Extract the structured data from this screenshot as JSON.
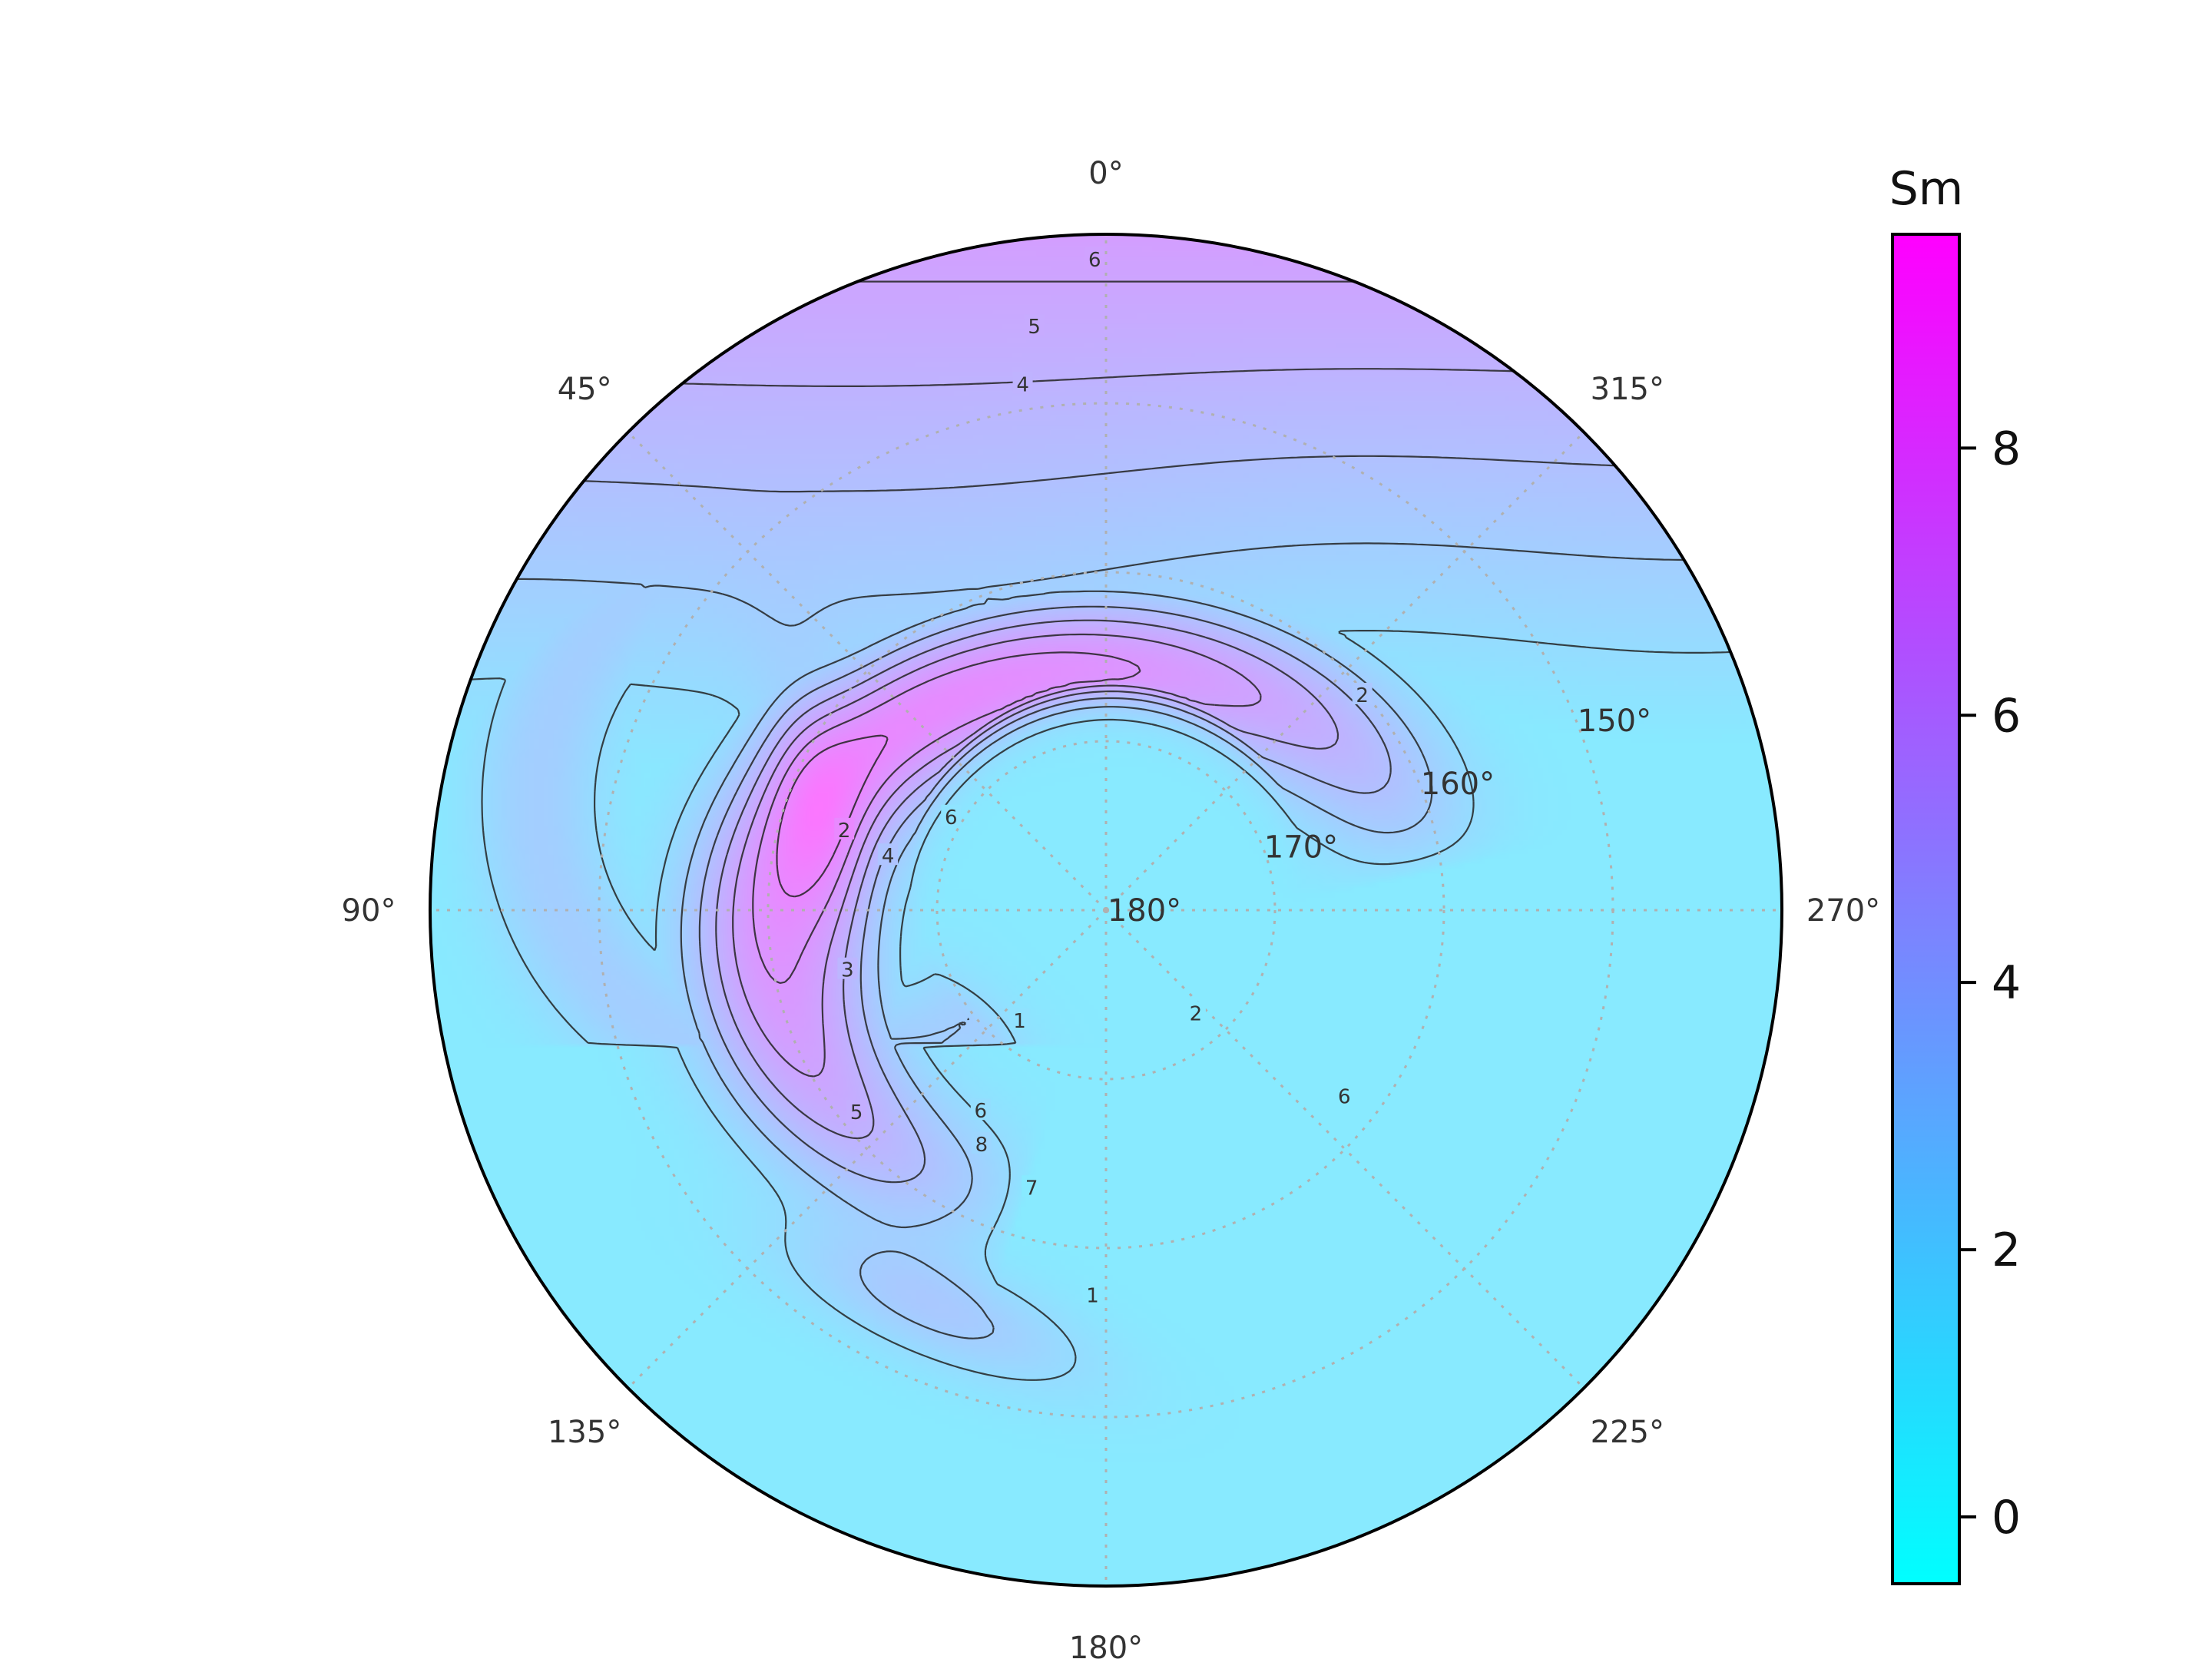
{
  "chart_data": {
    "type": "polar contour",
    "projection": "polar stereographic (south pole centred)",
    "quantity": "Sm",
    "colormap": "cool",
    "colormap_colors": [
      "#00ffff",
      "#ff00ff"
    ],
    "background_fill_value": 1.0,
    "azimuth_ticks": [
      {
        "angle": 0,
        "label": "0°"
      },
      {
        "angle": 45,
        "label": "45°"
      },
      {
        "angle": 90,
        "label": "90°"
      },
      {
        "angle": 135,
        "label": "135°"
      },
      {
        "angle": 180,
        "label": "180°"
      },
      {
        "angle": 225,
        "label": "225°"
      },
      {
        "angle": 270,
        "label": "270°"
      },
      {
        "angle": 315,
        "label": "315°"
      }
    ],
    "colatitude_rings": [
      {
        "value": 150,
        "label": "150°"
      },
      {
        "value": 160,
        "label": "160°"
      },
      {
        "value": 170,
        "label": "170°"
      },
      {
        "value": 180,
        "label": "180°"
      }
    ],
    "contour_levels": [
      1,
      2,
      3,
      4,
      5,
      6,
      7,
      8
    ],
    "contour_labels": [
      {
        "value": 6,
        "text": "6",
        "az": 1,
        "colat": 141.5
      },
      {
        "value": 5,
        "text": "5",
        "az": 7,
        "colat": 145.2
      },
      {
        "value": 4,
        "text": "4",
        "az": 9,
        "colat": 148.5
      },
      {
        "value": 2,
        "text": "2",
        "az": 73,
        "colat": 163.8
      },
      {
        "value": 4,
        "text": "4",
        "az": 76,
        "colat": 166.7
      },
      {
        "value": 3,
        "text": "3",
        "az": 103,
        "colat": 164.3
      },
      {
        "value": 6,
        "text": "6",
        "az": 59,
        "colat": 169.3
      },
      {
        "value": 6,
        "text": "6",
        "az": 148,
        "colat": 166.0
      },
      {
        "value": 8,
        "text": "8",
        "az": 152,
        "colat": 164.3
      },
      {
        "value": 5,
        "text": "5",
        "az": 129,
        "colat": 161.0
      },
      {
        "value": 7,
        "text": "7",
        "az": 165,
        "colat": 163.0
      },
      {
        "value": 1,
        "text": "1",
        "az": 142,
        "colat": 171.7
      },
      {
        "value": 2,
        "text": "2",
        "az": 221,
        "colat": 171.9
      },
      {
        "value": 6,
        "text": "6",
        "az": 232,
        "colat": 162.1
      },
      {
        "value": 1,
        "text": "1",
        "az": 178,
        "colat": 157.2
      },
      {
        "value": 2,
        "text": "2",
        "az": 310,
        "colat": 160.2
      }
    ],
    "field_model": {
      "background": {
        "base": 1.0,
        "top_value": 6.0,
        "top_y": 0.93,
        "front_y": 0.22,
        "front_tilt": 0.07,
        "front_wave_amp": 0.04
      },
      "ring": {
        "center_x": 0.0,
        "center_y": -0.05,
        "radius": 0.49,
        "ellipse_y": 0.83,
        "width": 0.26,
        "peak": 7.3,
        "start_angle_deg": 105,
        "end_angle_deg": 345
      },
      "bands": [
        {
          "dx": -0.44,
          "dy": 0.16,
          "radius": 0.4,
          "width": 0.1,
          "peak": 2.0
        }
      ],
      "maxima": [
        {
          "x": -0.25,
          "y": -0.59,
          "sx": 0.17,
          "sy": 0.055,
          "rotate_deg": -22,
          "peak": 2.3
        },
        {
          "x": -0.42,
          "y": 0.12,
          "sx": 0.05,
          "sy": 0.17,
          "rotate_deg": 10,
          "peak": 1.5
        }
      ],
      "hole": {
        "x": 0.0,
        "y": 0.05,
        "r": 0.29,
        "value": 1.0
      }
    },
    "colorbar": {
      "label": "Sm",
      "min": -0.5,
      "max": 9.6,
      "ticks": [
        0,
        2,
        4,
        6,
        8
      ]
    }
  }
}
